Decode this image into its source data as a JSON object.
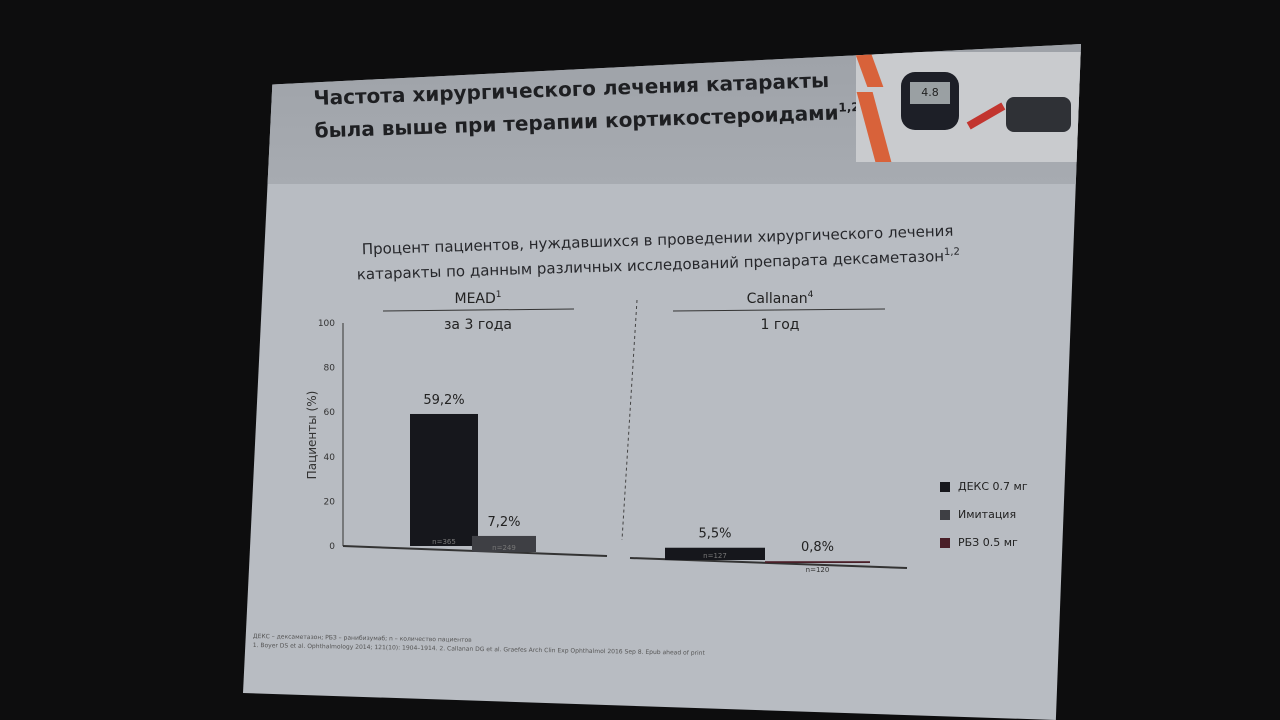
{
  "slide": {
    "title_line1": "Частота хирургического лечения катаракты",
    "title_line2": "была выше при терапии кортикостероидами",
    "title_sup": "1,2",
    "photo": {
      "meter_reading": "4.8"
    },
    "footnote_abbrev": "ДЕКС – дексаметазон; РБЗ – ранибизумаб; n – количество пациентов",
    "footnote_refs": "1. Boyer DS et al. Ophthalmology 2014; 121(10): 1904–1914. 2. Callanan DG et al. Graefes Arch Clin Exp Ophthalmol 2016 Sep 8. Epub ahead of print",
    "accent_color": "#d8623a"
  },
  "chart_data": {
    "type": "bar",
    "title": "Процент пациентов, нуждавшихся в проведении хирургического лечения катаракты по данным различных исследований препарата дексаметазон",
    "title_line1": "Процент пациентов, нуждавшихся в проведении хирургического лечения",
    "title_line2": "катаракты по данным различных исследований препарата дексаметазон",
    "title_sup": "1,2",
    "ylabel": "Пациенты (%)",
    "ylim": [
      0,
      100
    ],
    "yticks": [
      "0",
      "20",
      "40",
      "60",
      "80",
      "100"
    ],
    "grid": false,
    "legend_position": "right",
    "groups": [
      {
        "name": "MEAD",
        "sup": "1",
        "period": "за 3 года",
        "bars": [
          {
            "series": "ДЕКС 0.7 мг",
            "value": 59.2,
            "label": "59,2%",
            "n": "n=365"
          },
          {
            "series": "Имитация",
            "value": 7.2,
            "label": "7,2%",
            "n": "n=249"
          }
        ]
      },
      {
        "name": "Callanan",
        "sup": "4",
        "period": "1 год",
        "bars": [
          {
            "series": "ДЕКС 0.7 мг",
            "value": 5.5,
            "label": "5,5%",
            "n": "n=127"
          },
          {
            "series": "РБЗ 0.5 мг",
            "value": 0.8,
            "label": "0,8%",
            "n": "n=120"
          }
        ]
      }
    ],
    "legend": [
      {
        "name": "ДЕКС 0.7 мг",
        "color": "#16171c"
      },
      {
        "name": "Имитация",
        "color": "#3e3f44"
      },
      {
        "name": "РБЗ 0.5 мг",
        "color": "#4a1f28"
      }
    ]
  }
}
